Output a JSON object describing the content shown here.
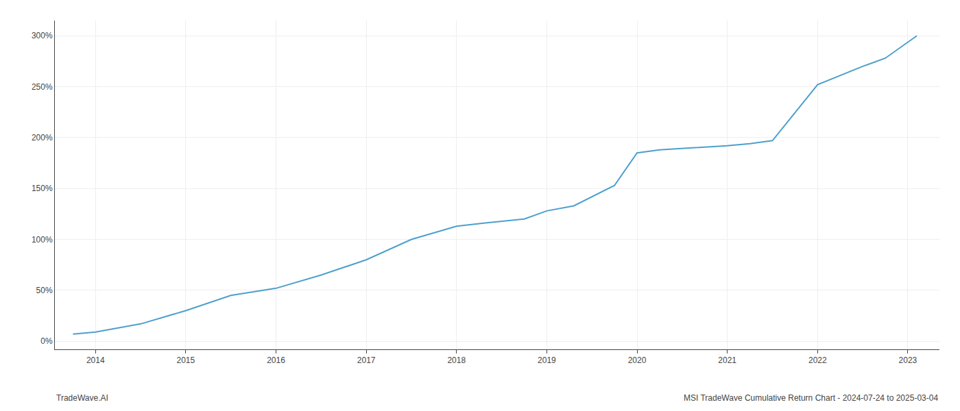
{
  "chart_data": {
    "type": "line",
    "x": [
      2013.75,
      2014.0,
      2014.5,
      2015.0,
      2015.5,
      2016.0,
      2016.5,
      2017.0,
      2017.5,
      2018.0,
      2018.3,
      2018.75,
      2019.0,
      2019.3,
      2019.75,
      2020.0,
      2020.25,
      2020.6,
      2020.75,
      2021.0,
      2021.25,
      2021.5,
      2022.0,
      2022.5,
      2022.75,
      2023.1
    ],
    "values": [
      7,
      9,
      17,
      30,
      45,
      52,
      65,
      80,
      100,
      113,
      116,
      120,
      128,
      133,
      153,
      185,
      188,
      190,
      191,
      192,
      194,
      197,
      252,
      270,
      278,
      300
    ],
    "color": "#4d9fcd",
    "xlim": [
      2013.55,
      2023.35
    ],
    "xticks": [
      2014,
      2015,
      2016,
      2017,
      2018,
      2019,
      2020,
      2021,
      2022,
      2023
    ],
    "ylim": [
      -8,
      315
    ],
    "yticks": [
      {
        "value": 0,
        "label": "0%"
      },
      {
        "value": 50,
        "label": "50%"
      },
      {
        "value": 100,
        "label": "100%"
      },
      {
        "value": 150,
        "label": "150%"
      },
      {
        "value": 200,
        "label": "200%"
      },
      {
        "value": 250,
        "label": "250%"
      },
      {
        "value": 300,
        "label": "300%"
      }
    ],
    "grid": true,
    "annotations": [
      "TradeWave.AI",
      "MSI TradeWave Cumulative Return Chart - 2024-07-24 to 2025-03-04"
    ]
  }
}
